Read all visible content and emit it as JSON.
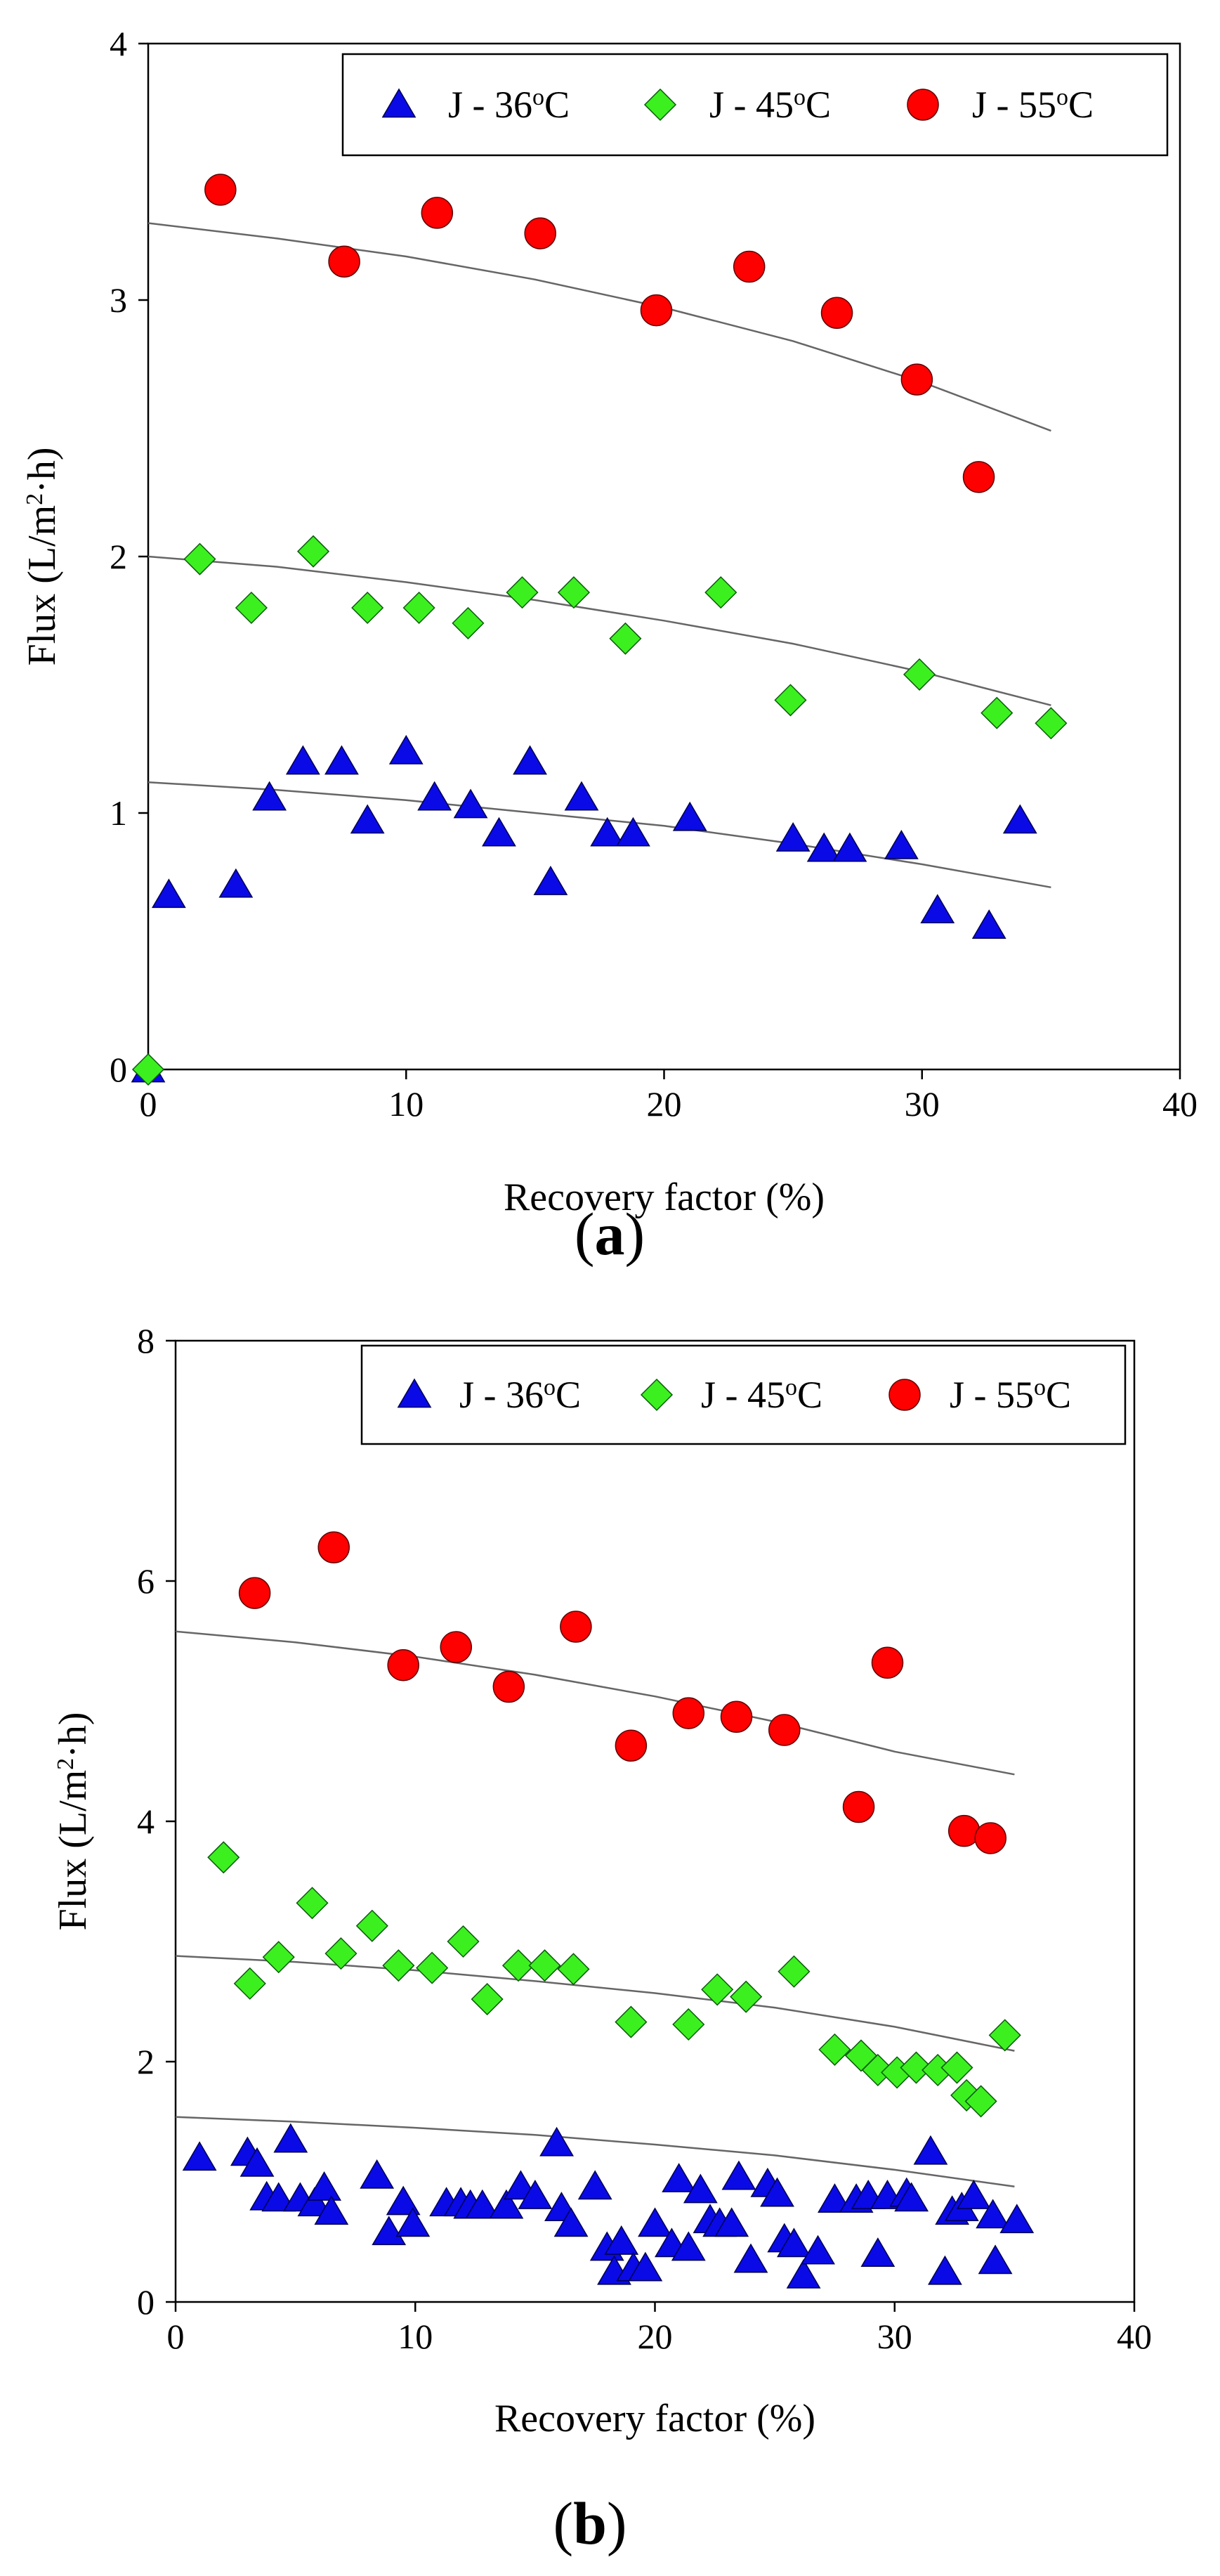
{
  "chart_data": [
    {
      "type": "scatter",
      "panel_label": "a",
      "xlabel": "Recovery factor (%)",
      "ylabel": {
        "main": "Flux (L/m",
        "sup": "2",
        "tail": "·h)"
      },
      "xlim": [
        0,
        40
      ],
      "ylim": [
        0,
        4
      ],
      "xticks": [
        0,
        10,
        20,
        30,
        40
      ],
      "yticks": [
        0,
        1,
        2,
        3,
        4
      ],
      "xtick_labels": [
        "0",
        "10",
        "20",
        "30",
        "40"
      ],
      "ytick_labels": [
        "0",
        "1",
        "2",
        "3",
        "4"
      ],
      "legend_position": "top-right",
      "series": [
        {
          "name": "J - 36oC",
          "label_main": "J - 36",
          "label_sup": "o",
          "label_tail": "C",
          "marker": "triangle",
          "color": "#0a0ae6",
          "x": [
            0.0,
            0.8,
            3.4,
            4.7,
            6.0,
            7.5,
            8.5,
            10.0,
            11.1,
            12.5,
            13.6,
            14.8,
            15.6,
            16.8,
            17.8,
            18.8,
            21.0,
            25.0,
            26.2,
            27.2,
            29.2,
            30.6,
            32.6,
            33.8
          ],
          "y": [
            0.0,
            0.68,
            0.72,
            1.06,
            1.2,
            1.2,
            0.97,
            1.24,
            1.06,
            1.03,
            0.92,
            1.2,
            0.73,
            1.06,
            0.92,
            0.92,
            0.98,
            0.9,
            0.86,
            0.86,
            0.87,
            0.62,
            0.56,
            0.97
          ],
          "trend_x": [
            0,
            5,
            10,
            15,
            20,
            25,
            30,
            35
          ],
          "trend_y": [
            1.12,
            1.09,
            1.05,
            1.0,
            0.95,
            0.88,
            0.8,
            0.71
          ]
        },
        {
          "name": "J - 45oC",
          "label_main": "J - 45",
          "label_sup": "o",
          "label_tail": "C",
          "marker": "diamond",
          "color": "#3cf020",
          "x": [
            0.0,
            2.0,
            4.0,
            6.4,
            8.5,
            10.5,
            12.4,
            14.5,
            16.5,
            18.5,
            22.2,
            24.9,
            29.9,
            32.9,
            35.0
          ],
          "y": [
            0.0,
            1.99,
            1.8,
            2.02,
            1.8,
            1.8,
            1.74,
            1.86,
            1.86,
            1.68,
            1.86,
            1.44,
            1.54,
            1.39,
            1.35
          ],
          "trend_x": [
            0,
            5,
            10,
            15,
            20,
            25,
            30,
            35
          ],
          "trend_y": [
            2.0,
            1.96,
            1.9,
            1.83,
            1.75,
            1.66,
            1.55,
            1.42
          ]
        },
        {
          "name": "J - 55oC",
          "label_main": "J - 55",
          "label_sup": "o",
          "label_tail": "C",
          "marker": "circle",
          "color": "#ff0000",
          "x": [
            2.8,
            7.6,
            11.2,
            15.2,
            19.7,
            23.3,
            26.7,
            29.8,
            32.2
          ],
          "y": [
            3.43,
            3.15,
            3.34,
            3.26,
            2.96,
            3.13,
            2.95,
            2.69,
            2.31
          ],
          "trend_x": [
            0,
            5,
            10,
            15,
            20,
            25,
            30,
            35
          ],
          "trend_y": [
            3.3,
            3.24,
            3.17,
            3.08,
            2.97,
            2.84,
            2.68,
            2.49
          ]
        }
      ]
    },
    {
      "type": "scatter",
      "panel_label": "b",
      "xlabel": "Recovery factor (%)",
      "ylabel": {
        "main": "Flux (L/m",
        "sup": "2",
        "tail": "·h)"
      },
      "xlim": [
        0,
        40
      ],
      "ylim": [
        0,
        8
      ],
      "xticks": [
        0,
        10,
        20,
        30,
        40
      ],
      "yticks": [
        0,
        2,
        4,
        6,
        8
      ],
      "xtick_labels": [
        "0",
        "10",
        "20",
        "30",
        "40"
      ],
      "ytick_labels": [
        "0",
        "2",
        "4",
        "6",
        "8"
      ],
      "legend_position": "top-right",
      "series": [
        {
          "name": "J - 36oC",
          "label_main": "J - 36",
          "label_sup": "o",
          "label_tail": "C",
          "marker": "triangle",
          "color": "#0a0ae6",
          "x": [
            1.0,
            3.0,
            3.4,
            3.8,
            4.3,
            4.8,
            5.2,
            5.8,
            6.2,
            6.5,
            8.4,
            8.9,
            9.5,
            9.9,
            11.3,
            11.9,
            12.3,
            12.8,
            13.8,
            14.4,
            15.0,
            15.9,
            16.1,
            16.5,
            17.5,
            18.0,
            18.3,
            18.6,
            19.1,
            19.6,
            20.0,
            20.7,
            21.0,
            21.4,
            21.9,
            22.3,
            22.7,
            23.2,
            23.5,
            24.0,
            24.7,
            25.1,
            25.4,
            25.8,
            26.2,
            26.8,
            27.5,
            28.4,
            28.9,
            29.3,
            29.7,
            30.5,
            30.7,
            31.5,
            32.1,
            32.4,
            32.8,
            33.3,
            34.1,
            34.2,
            35.1
          ],
          "y": [
            1.2,
            1.24,
            1.15,
            0.87,
            0.86,
            1.35,
            0.86,
            0.82,
            0.95,
            0.75,
            1.05,
            0.58,
            0.83,
            0.65,
            0.82,
            0.82,
            0.8,
            0.8,
            0.8,
            0.96,
            0.88,
            1.32,
            0.78,
            0.65,
            0.96,
            0.45,
            0.25,
            0.5,
            0.28,
            0.28,
            0.65,
            0.48,
            1.02,
            0.45,
            0.93,
            0.68,
            0.65,
            0.65,
            1.04,
            0.35,
            0.98,
            0.9,
            0.52,
            0.48,
            0.22,
            0.42,
            0.85,
            0.85,
            0.88,
            0.4,
            0.88,
            0.9,
            0.86,
            1.25,
            0.25,
            0.75,
            0.78,
            0.88,
            0.72,
            0.34,
            0.68
          ],
          "trend_x": [
            0,
            5,
            10,
            15,
            20,
            25,
            30,
            35
          ],
          "trend_y": [
            1.54,
            1.5,
            1.45,
            1.39,
            1.31,
            1.22,
            1.1,
            0.96
          ]
        },
        {
          "name": "J - 45oC",
          "label_main": "J - 45",
          "label_sup": "o",
          "label_tail": "C",
          "marker": "diamond",
          "color": "#3cf020",
          "x": [
            2.0,
            3.1,
            4.3,
            5.7,
            6.9,
            8.2,
            9.3,
            10.7,
            12.0,
            13.0,
            14.3,
            15.4,
            16.6,
            19.0,
            21.4,
            22.6,
            23.8,
            25.8,
            27.5,
            28.6,
            29.3,
            30.1,
            30.9,
            31.8,
            32.6,
            33.0,
            33.6,
            34.6
          ],
          "y": [
            3.7,
            2.65,
            2.87,
            3.32,
            2.9,
            3.13,
            2.8,
            2.78,
            3.0,
            2.52,
            2.8,
            2.8,
            2.77,
            2.33,
            2.31,
            2.6,
            2.54,
            2.75,
            2.1,
            2.05,
            1.93,
            1.91,
            1.95,
            1.93,
            1.95,
            1.72,
            1.67,
            2.22
          ],
          "trend_x": [
            0,
            5,
            10,
            15,
            20,
            25,
            30,
            35
          ],
          "trend_y": [
            2.88,
            2.83,
            2.76,
            2.67,
            2.57,
            2.45,
            2.29,
            2.09
          ]
        },
        {
          "name": "J - 55oC",
          "label_main": "J - 55",
          "label_sup": "o",
          "label_tail": "C",
          "marker": "circle",
          "color": "#ff0000",
          "x": [
            3.3,
            6.6,
            9.5,
            11.7,
            13.9,
            16.7,
            19.0,
            21.4,
            23.4,
            25.4,
            28.5,
            29.7,
            32.9,
            34.0
          ],
          "y": [
            5.9,
            6.28,
            5.3,
            5.45,
            5.12,
            5.62,
            4.63,
            4.9,
            4.87,
            4.76,
            4.12,
            5.32,
            3.92,
            3.86
          ],
          "trend_x": [
            0,
            5,
            10,
            15,
            20,
            25,
            30,
            35
          ],
          "trend_y": [
            5.58,
            5.49,
            5.37,
            5.22,
            5.04,
            4.83,
            4.58,
            4.39
          ]
        }
      ]
    }
  ]
}
